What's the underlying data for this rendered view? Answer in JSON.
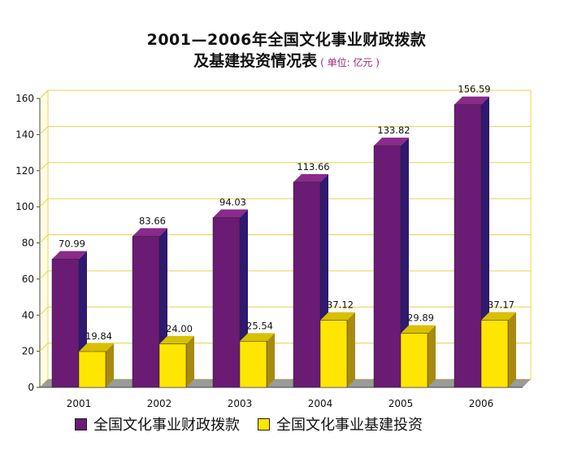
{
  "title": "2001—2006年全国文化事业财政拨款",
  "title_line2": "及基建投资情况表",
  "unit": "( 单位: 亿元 )",
  "colors": {
    "series1_front": "#6a1b74",
    "series1_side": "#2e1a6e",
    "series1_top": "#8a2a8a",
    "series2_front": "#ffe600",
    "series2_side": "#a88a10",
    "series2_top": "#d9c000",
    "grid": "#e8d44a",
    "floor": "#9a9a9a"
  },
  "chart_data": {
    "type": "bar",
    "categories": [
      "2001",
      "2002",
      "2003",
      "2004",
      "2005",
      "2006"
    ],
    "series": [
      {
        "name": "全国文化事业财政拨款",
        "values": [
          70.99,
          83.66,
          94.03,
          113.66,
          133.82,
          156.59
        ],
        "labels": [
          "70.99",
          "83.66",
          "94.03",
          "113.66",
          "133.82",
          "156.59"
        ]
      },
      {
        "name": "全国文化事业基建投资",
        "values": [
          19.84,
          24.0,
          25.54,
          37.12,
          29.89,
          37.17
        ],
        "labels": [
          "19.84",
          "24.00",
          "25.54",
          "37.12",
          "29.89",
          "37.17"
        ]
      }
    ],
    "ylim": [
      0,
      160
    ],
    "yticks": [
      "0",
      "20",
      "40",
      "60",
      "80",
      "100",
      "120",
      "140",
      "160"
    ],
    "grid": true,
    "legend": "bottom"
  }
}
